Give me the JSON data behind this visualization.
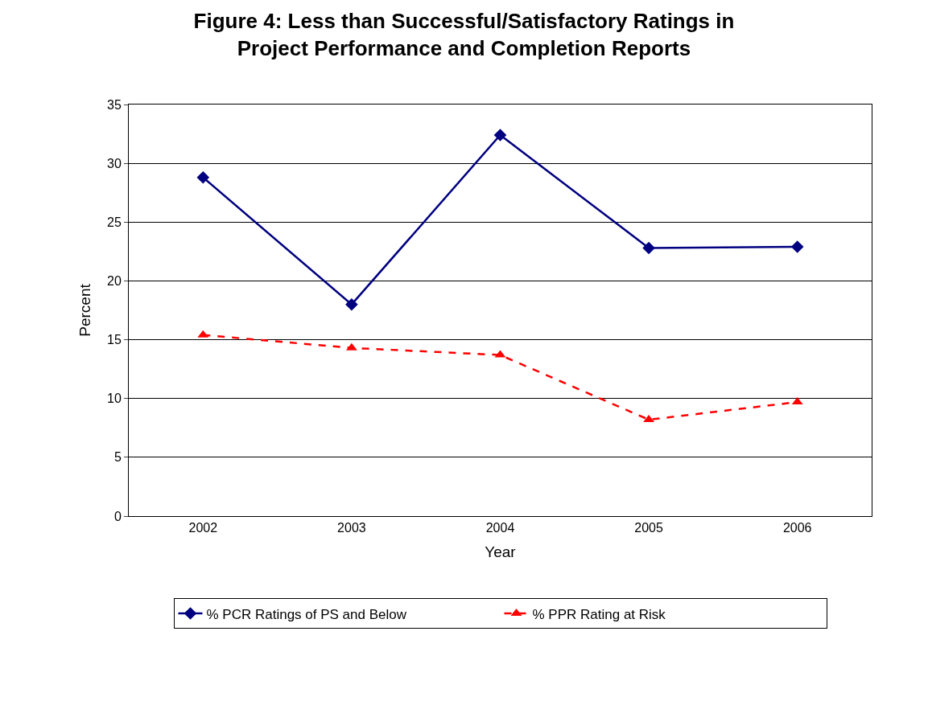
{
  "chart_data": {
    "type": "line",
    "title": "Figure 4: Less than Successful/Satisfactory Ratings in Project Performance and Completion Reports",
    "xlabel": "Year",
    "ylabel": "Percent",
    "categories": [
      "2002",
      "2003",
      "2004",
      "2005",
      "2006"
    ],
    "series": [
      {
        "name": "% PCR Ratings of PS and Below",
        "color": "#000080",
        "values": [
          28.8,
          18.0,
          32.4,
          22.8,
          22.9
        ],
        "marker": "diamond",
        "line_style": "solid"
      },
      {
        "name": "% PPR Rating at Risk",
        "color": "#ff0000",
        "values": [
          15.4,
          14.3,
          13.7,
          8.2,
          9.7
        ],
        "marker": "triangle",
        "line_style": "dashed"
      }
    ],
    "ylim": [
      0,
      35
    ],
    "yticks": [
      0,
      5,
      10,
      15,
      20,
      25,
      30,
      35
    ],
    "grid": "y",
    "legend": "bottom"
  }
}
